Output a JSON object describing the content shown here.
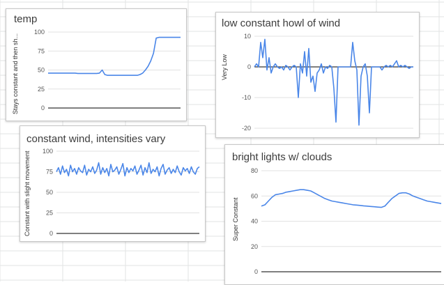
{
  "colors": {
    "series_line": "#4a86e8",
    "gridline": "#e2e2e2",
    "baseline": "#333333",
    "sheet_grid": "#e2e3e3"
  },
  "chart_data": [
    {
      "id": "temp",
      "type": "line",
      "title": "temp",
      "ylabel": "Stays constant and then sh...",
      "ylim": [
        0,
        100
      ],
      "yticks": [
        0,
        25,
        50,
        75,
        100
      ],
      "grid": true,
      "series": [
        {
          "values": [
            46,
            46,
            46,
            46,
            46,
            46,
            46,
            46,
            46,
            46,
            46,
            45.5,
            45.5,
            45.5,
            45.5,
            45.5,
            45.5,
            45.5,
            45.5,
            46,
            50,
            44,
            43,
            43,
            43,
            43,
            43,
            43,
            43,
            43,
            43,
            43,
            43,
            43,
            44,
            46,
            50,
            55,
            62,
            72,
            92,
            93,
            93,
            93,
            93,
            93,
            93,
            93,
            93,
            93
          ]
        }
      ]
    },
    {
      "id": "wind",
      "type": "line",
      "title": "low constant howl of wind",
      "ylabel": "Very Low",
      "ylim": [
        -20,
        10
      ],
      "yticks": [
        -20,
        -10,
        0,
        10
      ],
      "grid": true,
      "series": [
        {
          "values": [
            0,
            1,
            0,
            8,
            3,
            9,
            -1,
            3,
            -2,
            0,
            1,
            0,
            -0.5,
            0,
            -1,
            0.5,
            0,
            -1,
            0,
            0.5,
            0,
            -10,
            1,
            -2,
            5,
            -3,
            6,
            -5,
            -3,
            -8,
            -2,
            -1,
            1,
            -2,
            0,
            -0.5,
            0.5,
            0,
            -7,
            -18,
            0,
            0,
            0,
            0,
            0,
            0,
            0,
            8,
            2,
            -1,
            -19,
            -3,
            0,
            1,
            -3,
            -15,
            0,
            0,
            0,
            0,
            0,
            -1,
            0,
            0.5,
            0,
            0.5,
            0,
            1,
            2,
            0,
            0.5,
            0,
            0.5,
            0,
            -0.5,
            0,
            0
          ]
        }
      ]
    },
    {
      "id": "const",
      "type": "line",
      "title": "constant wind, intensities vary",
      "ylabel": "Constant with slight movement",
      "ylim": [
        0,
        100
      ],
      "yticks": [
        0,
        25,
        50,
        75,
        100
      ],
      "grid": true,
      "series": [
        {
          "values": [
            75,
            80,
            72,
            82,
            74,
            78,
            70,
            83,
            75,
            79,
            72,
            80,
            76,
            74,
            83,
            71,
            78,
            75,
            81,
            73,
            77,
            86,
            72,
            80,
            74,
            79,
            70,
            84,
            75,
            77,
            81,
            72,
            78,
            85,
            70,
            80,
            74,
            79,
            76,
            82,
            72,
            77,
            83,
            71,
            80,
            74,
            86,
            73,
            78,
            75,
            81,
            70,
            79,
            84,
            72,
            77,
            80,
            73,
            78,
            74,
            82,
            75,
            71,
            80,
            76,
            79,
            73,
            81,
            75,
            72,
            79,
            81
          ]
        }
      ]
    },
    {
      "id": "lights",
      "type": "line",
      "title": "bright lights w/ clouds",
      "ylabel": "Super Constant",
      "ylim": [
        0,
        80
      ],
      "yticks": [
        0,
        20,
        40,
        60,
        80
      ],
      "grid": true,
      "series": [
        {
          "values": [
            52,
            53,
            56,
            59,
            61,
            61.5,
            62,
            63,
            63.5,
            64,
            64.5,
            65,
            65,
            64.5,
            64,
            62.5,
            61,
            59.5,
            58,
            57,
            56,
            55.5,
            55,
            54.5,
            54,
            53.5,
            53,
            52.8,
            52.5,
            52.2,
            52,
            51.7,
            51.5,
            51.2,
            51,
            52,
            55,
            58,
            60,
            62,
            62.5,
            62.5,
            61.5,
            60,
            59,
            58,
            57,
            56,
            55.5,
            55,
            54.5,
            54
          ]
        }
      ]
    }
  ]
}
